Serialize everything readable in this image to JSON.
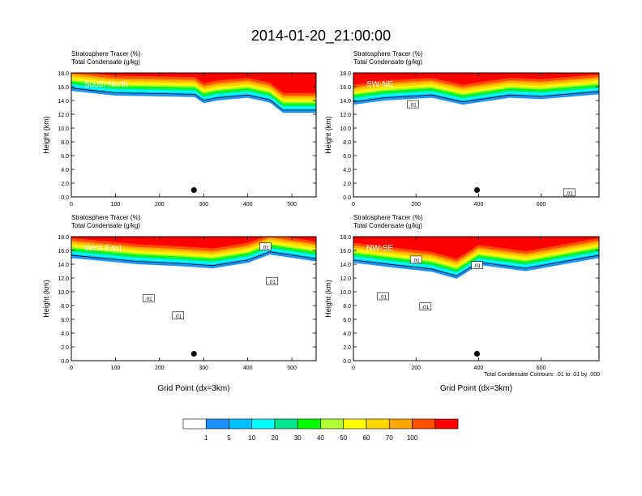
{
  "figure": {
    "title": "2014-01-20_21:00:00",
    "contour_note": "Total Condensate Contours: .01 to .01 by .000"
  },
  "chart_data": [
    {
      "type": "heatmap",
      "panel_label": "South-North",
      "subtitle_1": "Stratosphere Tracer   (%)",
      "subtitle_2": "Total Condensate   (g/kg)",
      "ylabel": "Height (km)",
      "xlabel": "",
      "xlim": [
        0,
        555
      ],
      "ylim": [
        0,
        18
      ],
      "xticks": [
        0,
        100,
        200,
        300,
        400,
        500
      ],
      "yticks": [
        "0.0",
        "2.0",
        "4.0",
        "6.0",
        "8.0",
        "10.0",
        "12.0",
        "14.0",
        "16.0",
        "18.0"
      ],
      "tracer_base_km": [
        [
          0,
          16.0
        ],
        [
          100,
          15.3
        ],
        [
          200,
          15.2
        ],
        [
          280,
          15.1
        ],
        [
          300,
          14.2
        ],
        [
          330,
          14.6
        ],
        [
          400,
          15.0
        ],
        [
          450,
          14.3
        ],
        [
          480,
          12.8
        ],
        [
          555,
          12.8
        ]
      ],
      "contour_labels": [],
      "marker": {
        "x": 278,
        "y_km": 1.0
      }
    },
    {
      "type": "heatmap",
      "panel_label": "SW-NE",
      "subtitle_1": "Stratosphere Tracer   (%)",
      "subtitle_2": "Total Condensate   (g/kg)",
      "ylabel": "Height (km)",
      "xlabel": "",
      "xlim": [
        0,
        785
      ],
      "ylim": [
        0,
        18
      ],
      "xticks": [
        0,
        200,
        400,
        600
      ],
      "yticks": [
        "0.0",
        "2.0",
        "4.0",
        "6.0",
        "8.0",
        "10.0",
        "12.0",
        "14.0",
        "16.0",
        "18.0"
      ],
      "tracer_base_km": [
        [
          0,
          14.0
        ],
        [
          100,
          14.6
        ],
        [
          250,
          15.0
        ],
        [
          350,
          14.0
        ],
        [
          500,
          15.0
        ],
        [
          600,
          14.8
        ],
        [
          785,
          15.5
        ]
      ],
      "contour_labels": [
        {
          "text": ".01",
          "x": 190,
          "y_km": 13.4
        },
        {
          "text": ".01",
          "x": 690,
          "y_km": 0.6
        }
      ],
      "marker": {
        "x": 395,
        "y_km": 1.0
      }
    },
    {
      "type": "heatmap",
      "panel_label": "West-East",
      "subtitle_1": "Stratosphere Tracer   (%)",
      "subtitle_2": "Total Condensate   (g/kg)",
      "ylabel": "Height (km)",
      "xlabel": "Grid Point (dx=3km)",
      "xlim": [
        0,
        555
      ],
      "ylim": [
        0,
        18
      ],
      "xticks": [
        0,
        100,
        200,
        300,
        400,
        500
      ],
      "yticks": [
        "0.0",
        "2.0",
        "4.0",
        "6.0",
        "8.0",
        "10.0",
        "12.0",
        "14.0",
        "16.0",
        "18.0"
      ],
      "tracer_base_km": [
        [
          0,
          15.5
        ],
        [
          150,
          14.6
        ],
        [
          250,
          14.3
        ],
        [
          320,
          14.0
        ],
        [
          400,
          14.8
        ],
        [
          450,
          16.0
        ],
        [
          555,
          15.0
        ]
      ],
      "contour_labels": [
        {
          "text": ".01",
          "x": 175,
          "y_km": 9.0
        },
        {
          "text": ".01",
          "x": 242,
          "y_km": 6.5
        },
        {
          "text": ".01",
          "x": 455,
          "y_km": 11.5
        },
        {
          "text": ".01",
          "x": 440,
          "y_km": 16.5
        }
      ],
      "marker": {
        "x": 278,
        "y_km": 1.0
      }
    },
    {
      "type": "heatmap",
      "panel_label": "NW-SE",
      "subtitle_1": "Stratosphere Tracer   (%)",
      "subtitle_2": "Total Condensate   (g/kg)",
      "ylabel": "Height (km)",
      "xlabel": "Grid Point (dx=3km)",
      "xlim": [
        0,
        785
      ],
      "ylim": [
        0,
        18
      ],
      "xticks": [
        0,
        200,
        400,
        600
      ],
      "yticks": [
        "0.0",
        "2.0",
        "4.0",
        "6.0",
        "8.0",
        "10.0",
        "12.0",
        "14.0",
        "16.0",
        "18.0"
      ],
      "tracer_base_km": [
        [
          0,
          14.8
        ],
        [
          150,
          14.0
        ],
        [
          250,
          13.5
        ],
        [
          330,
          12.5
        ],
        [
          400,
          14.5
        ],
        [
          550,
          13.6
        ],
        [
          785,
          15.5
        ]
      ],
      "contour_labels": [
        {
          "text": ".01",
          "x": 95,
          "y_km": 9.3
        },
        {
          "text": ".01",
          "x": 200,
          "y_km": 14.6
        },
        {
          "text": ".01",
          "x": 230,
          "y_km": 7.8
        },
        {
          "text": ".01",
          "x": 395,
          "y_km": 13.8
        }
      ],
      "marker": {
        "x": 395,
        "y_km": 1.0
      }
    }
  ],
  "colorbar": {
    "labels": [
      "1",
      "5",
      "10",
      "20",
      "30",
      "40",
      "50",
      "60",
      "70",
      "100"
    ],
    "colors": [
      "#ffffff",
      "#1e90ff",
      "#00bfff",
      "#00ffff",
      "#00e68c",
      "#00ff00",
      "#adff2f",
      "#ffff00",
      "#ffd700",
      "#ffa500",
      "#ff5000",
      "#ff0000"
    ]
  }
}
